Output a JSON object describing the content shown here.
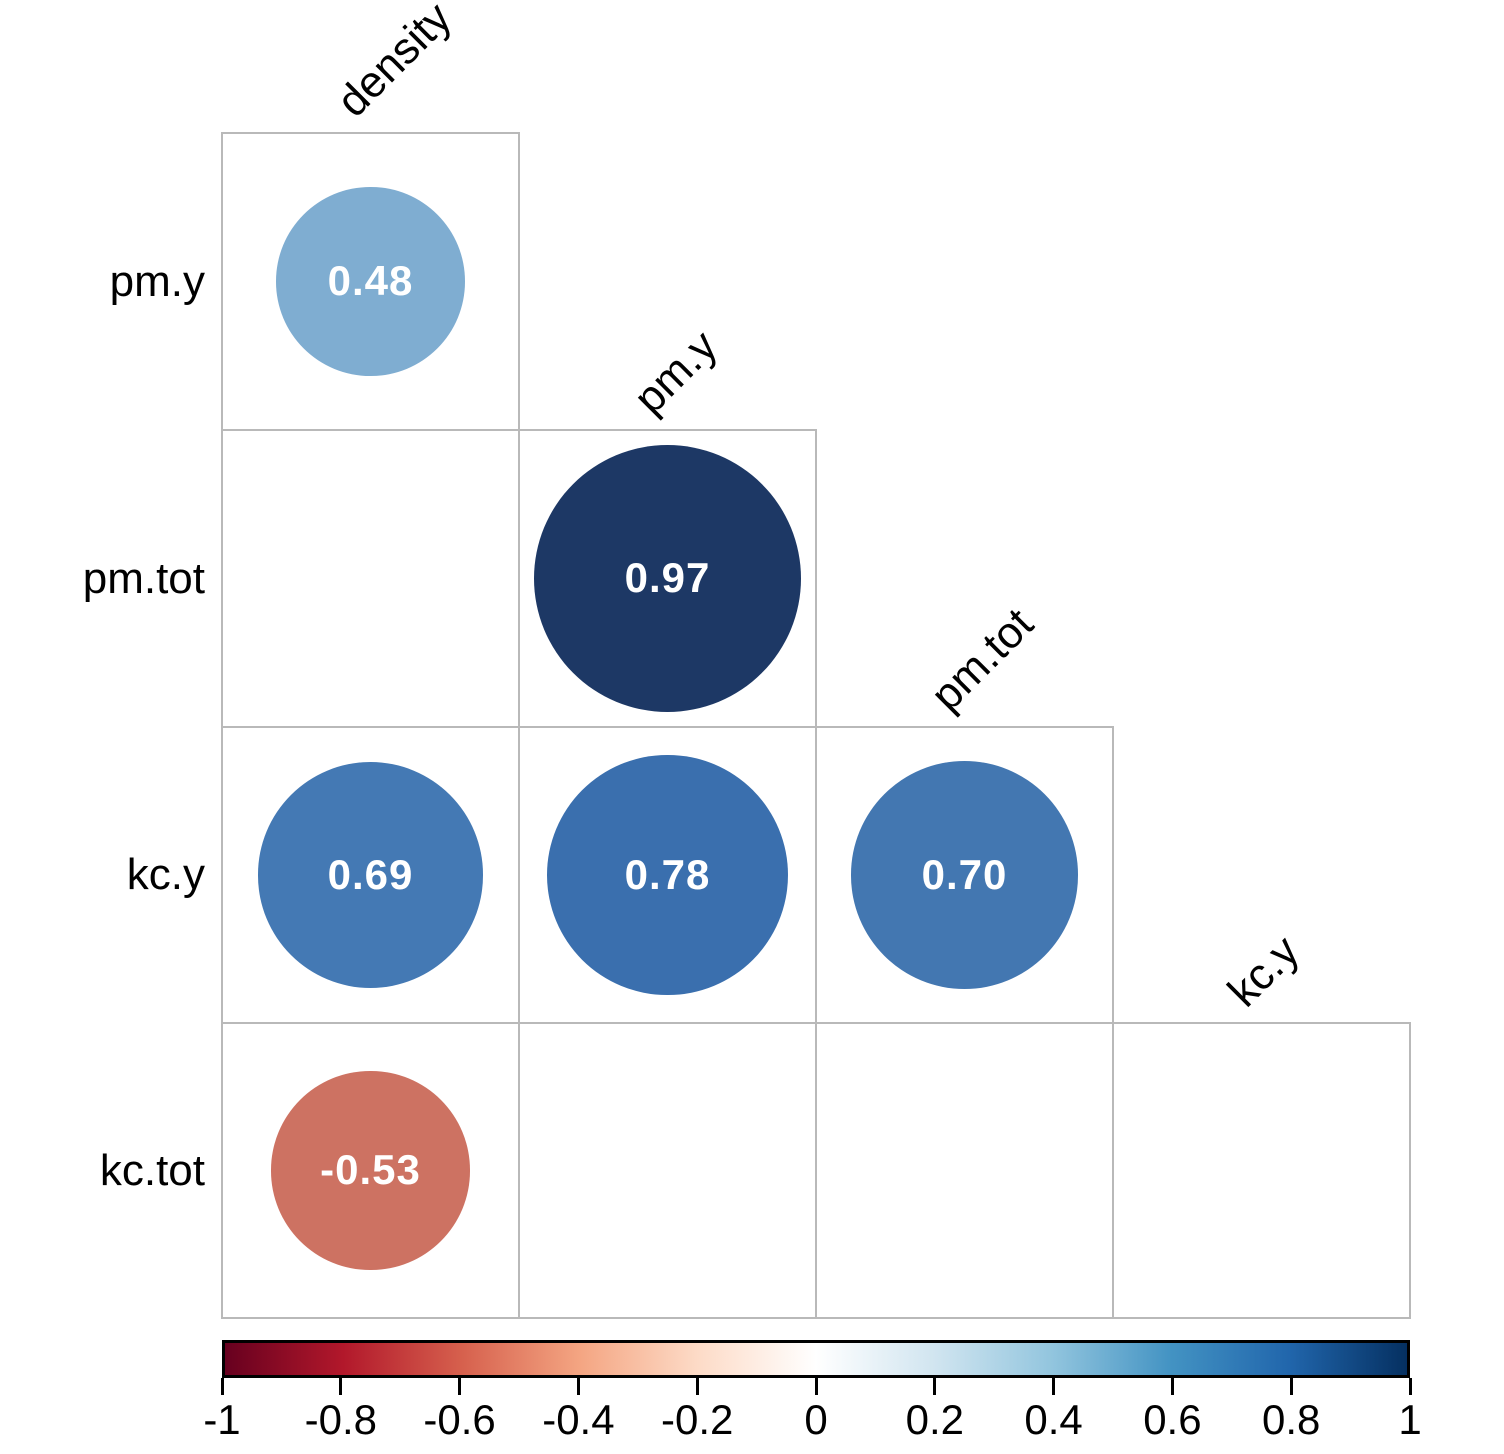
{
  "chart_data": {
    "type": "heatmap",
    "subtype": "correlation-matrix-lower-triangle-circles",
    "variables": [
      "density",
      "pm.y",
      "pm.tot",
      "kc.y",
      "kc.tot"
    ],
    "row_labels": [
      "pm.y",
      "pm.tot",
      "kc.y",
      "kc.tot"
    ],
    "diagonal_labels": [
      "density",
      "pm.y",
      "pm.tot",
      "kc.y"
    ],
    "cells": [
      {
        "row": "pm.y",
        "col": "density",
        "row_index": 0,
        "col_index": 0,
        "value": 0.48,
        "label": "0.48",
        "color": "#7fadd1"
      },
      {
        "row": "pm.tot",
        "col": "pm.y",
        "row_index": 1,
        "col_index": 1,
        "value": 0.97,
        "label": "0.97",
        "color": "#1d3865"
      },
      {
        "row": "kc.y",
        "col": "density",
        "row_index": 2,
        "col_index": 0,
        "value": 0.69,
        "label": "0.69",
        "color": "#4479b4"
      },
      {
        "row": "kc.y",
        "col": "pm.y",
        "row_index": 2,
        "col_index": 1,
        "value": 0.78,
        "label": "0.78",
        "color": "#3a6fae"
      },
      {
        "row": "kc.y",
        "col": "pm.tot",
        "row_index": 2,
        "col_index": 2,
        "value": 0.7,
        "label": "0.70",
        "color": "#4377b1"
      },
      {
        "row": "kc.tot",
        "col": "density",
        "row_index": 3,
        "col_index": 0,
        "value": -0.53,
        "label": "-0.53",
        "color": "#cd7262"
      }
    ],
    "value_text_color": "#ffffff",
    "grid_color": "#b9b9b9",
    "label_color": "#000000",
    "legend_position": "bottom",
    "colorbar": {
      "min": -1,
      "max": 1,
      "tick_labels": [
        "-1",
        "-0.8",
        "-0.6",
        "-0.4",
        "-0.2",
        "0",
        "0.2",
        "0.4",
        "0.6",
        "0.8",
        "1"
      ],
      "gradient_stops": [
        "#67001F",
        "#B2182B",
        "#D6604D",
        "#F4A582",
        "#FDDBC7",
        "#FFFFFF",
        "#D1E5F0",
        "#92C5DE",
        "#4393C3",
        "#2166AC",
        "#053061"
      ],
      "border_color": "#000000"
    }
  }
}
